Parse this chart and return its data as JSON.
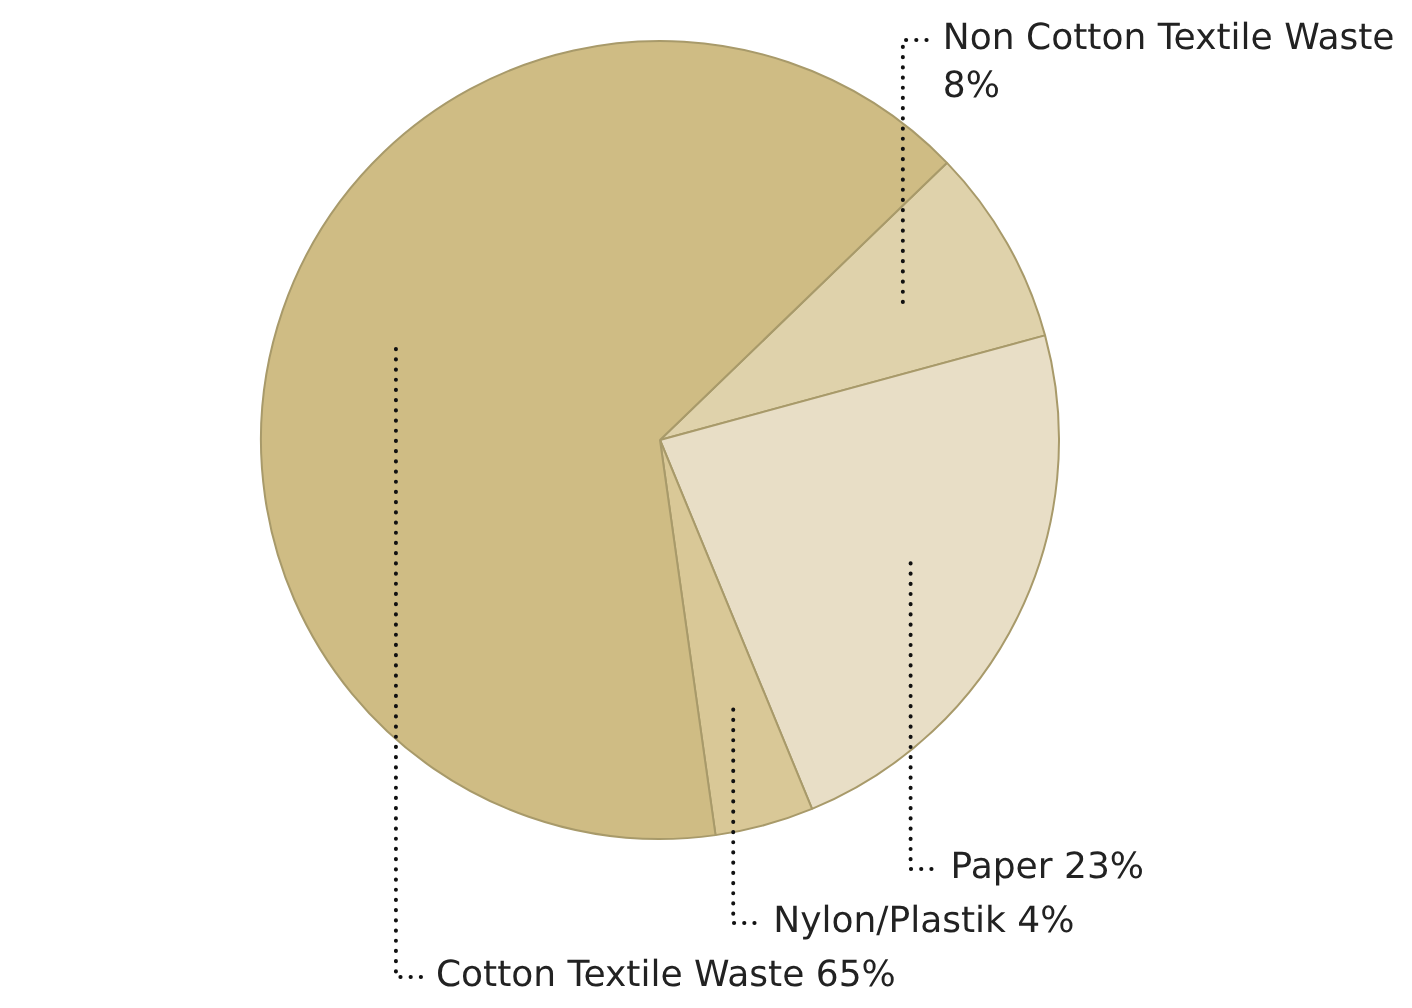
{
  "chart_data": {
    "type": "pie",
    "categories": [
      "Non Cotton Textile Waste",
      "Paper",
      "Nylon/Plastik",
      "Cotton Textile Waste"
    ],
    "values": [
      8,
      23,
      4,
      65
    ],
    "value_labels": [
      "8%",
      "23%",
      "4%",
      "65%"
    ],
    "colors": [
      "#dfd2ab",
      "#e8dec6",
      "#d9c897",
      "#cfbc84"
    ],
    "legend": false
  }
}
